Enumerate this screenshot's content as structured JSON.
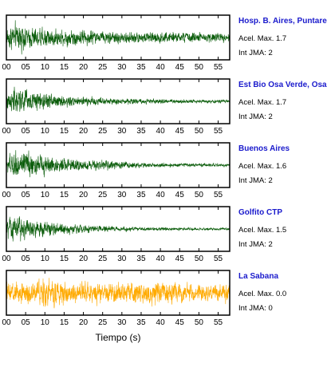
{
  "chart_data": {
    "type": "line",
    "xlabel": "Tiempo (s)",
    "xlim": [
      0,
      58
    ],
    "x_ticks": [
      "00",
      "05",
      "10",
      "15",
      "20",
      "25",
      "30",
      "35",
      "40",
      "45",
      "50",
      "55"
    ],
    "x_tick_values": [
      0,
      5,
      10,
      15,
      20,
      25,
      30,
      35,
      40,
      45,
      50,
      55
    ],
    "panels": [
      {
        "name": "Hosp. B. Aires, Puntarenas",
        "acel_label": "Acel. Max. 1.7",
        "int_label": "Int JMA: 2",
        "acel_max": 1.7,
        "int_jma": 2,
        "color": "#0a5c0a",
        "envelope": [
          [
            0,
            0.55
          ],
          [
            1,
            0.85
          ],
          [
            4,
            0.8
          ],
          [
            8,
            0.7
          ],
          [
            15,
            0.55
          ],
          [
            25,
            0.45
          ],
          [
            35,
            0.4
          ],
          [
            45,
            0.35
          ],
          [
            58,
            0.3
          ]
        ]
      },
      {
        "name": "Est Bio Osa Verde, Osa",
        "acel_label": "Acel. Max. 1.7",
        "int_label": "Int JMA: 2",
        "acel_max": 1.7,
        "int_jma": 2,
        "color": "#0a5c0a",
        "envelope": [
          [
            0,
            0.6
          ],
          [
            1,
            0.95
          ],
          [
            4,
            0.9
          ],
          [
            8,
            0.65
          ],
          [
            15,
            0.4
          ],
          [
            25,
            0.25
          ],
          [
            35,
            0.18
          ],
          [
            45,
            0.12
          ],
          [
            58,
            0.1
          ]
        ]
      },
      {
        "name": "Buenos Aires",
        "acel_label": "Acel. Max. 1.6",
        "int_label": "Int JMA: 2",
        "acel_max": 1.6,
        "int_jma": 2,
        "color": "#0a5c0a",
        "envelope": [
          [
            0,
            0.5
          ],
          [
            2,
            0.9
          ],
          [
            6,
            0.85
          ],
          [
            10,
            0.6
          ],
          [
            18,
            0.4
          ],
          [
            28,
            0.25
          ],
          [
            40,
            0.15
          ],
          [
            58,
            0.1
          ]
        ]
      },
      {
        "name": "Golfito CTP",
        "acel_label": "Acel. Max. 1.5",
        "int_label": "Int JMA: 2",
        "acel_max": 1.5,
        "int_jma": 2,
        "color": "#0a5c0a",
        "envelope": [
          [
            0,
            0.6
          ],
          [
            1,
            0.95
          ],
          [
            4,
            0.7
          ],
          [
            9,
            0.55
          ],
          [
            15,
            0.35
          ],
          [
            25,
            0.2
          ],
          [
            35,
            0.12
          ],
          [
            58,
            0.08
          ]
        ]
      },
      {
        "name": "La Sabana",
        "acel_label": "Acel. Max. 0.0",
        "int_label": "Int JMA: 0",
        "acel_max": 0.0,
        "int_jma": 0,
        "color": "#ffaa00",
        "envelope": [
          [
            0,
            0.7
          ],
          [
            10,
            0.85
          ],
          [
            20,
            0.7
          ],
          [
            30,
            0.7
          ],
          [
            40,
            0.75
          ],
          [
            50,
            0.6
          ],
          [
            58,
            0.6
          ]
        ]
      }
    ]
  }
}
